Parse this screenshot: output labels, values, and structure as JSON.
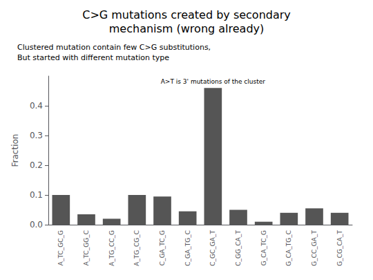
{
  "chart_data": {
    "type": "bar",
    "title": "C>G mutations created by secondary\nmechanism (wrong already)",
    "subtitle": [
      "Clustered mutation contain few C>G substitutions,",
      "But started with different mutation type"
    ],
    "annotations": [
      {
        "text": "A>T is 3' mutations of the cluster",
        "category": "C_GC_GA_T"
      }
    ],
    "categories": [
      "A_TC_GC_G",
      "A_TC_GG_C",
      "A_TG_CC_G",
      "A_TG_CG_C",
      "C_GA_TC_G",
      "C_GA_TG_C",
      "C_GC_GA_T",
      "C_GG_CA_T",
      "G_CA_TC_G",
      "G_CA_TG_C",
      "G_CC_GA_T",
      "G_CG_CA_T"
    ],
    "values": [
      0.1,
      0.035,
      0.02,
      0.1,
      0.095,
      0.045,
      0.46,
      0.05,
      0.01,
      0.04,
      0.055,
      0.04
    ],
    "color": "#555555",
    "ylabel": "Fraction",
    "ylim": [
      0,
      0.5
    ],
    "yticks": [
      {
        "value": 0,
        "label": "0.0"
      },
      0.1,
      0.2,
      0.3,
      0.4
    ],
    "grid": false
  }
}
